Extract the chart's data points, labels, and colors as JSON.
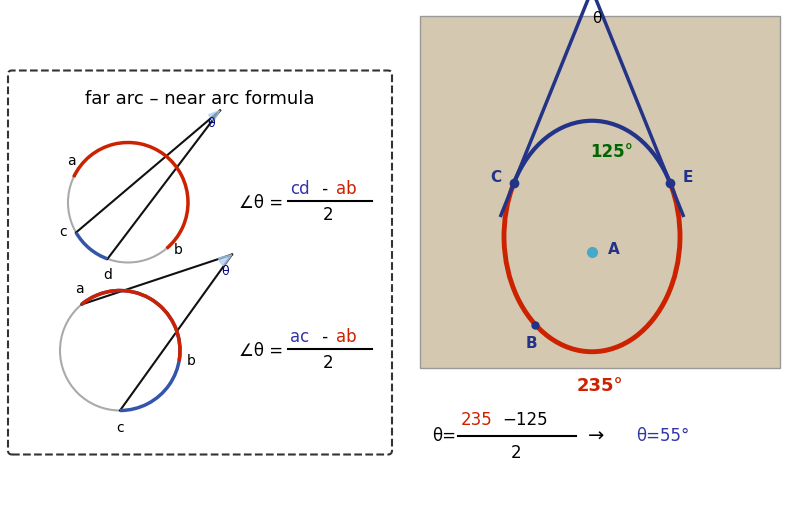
{
  "bg_color": "#ffffff",
  "dashed_box_color": "#333333",
  "title_text": "far arc – near arc formula",
  "diagram_circle_color": "#aaaaaa",
  "diagram_blue_arc": "#3355aa",
  "diagram_red_arc": "#cc2200",
  "diagram_line_color": "#111111",
  "diagram_theta_fill": "#aaccee",
  "arc_125_label": "125°",
  "arc_235_label": "235°",
  "solution_color_blue": "#3333aa",
  "solution_color_red": "#cc2200",
  "photo_bg": "#d4c8b0",
  "navy": "#223388",
  "green": "#006600"
}
